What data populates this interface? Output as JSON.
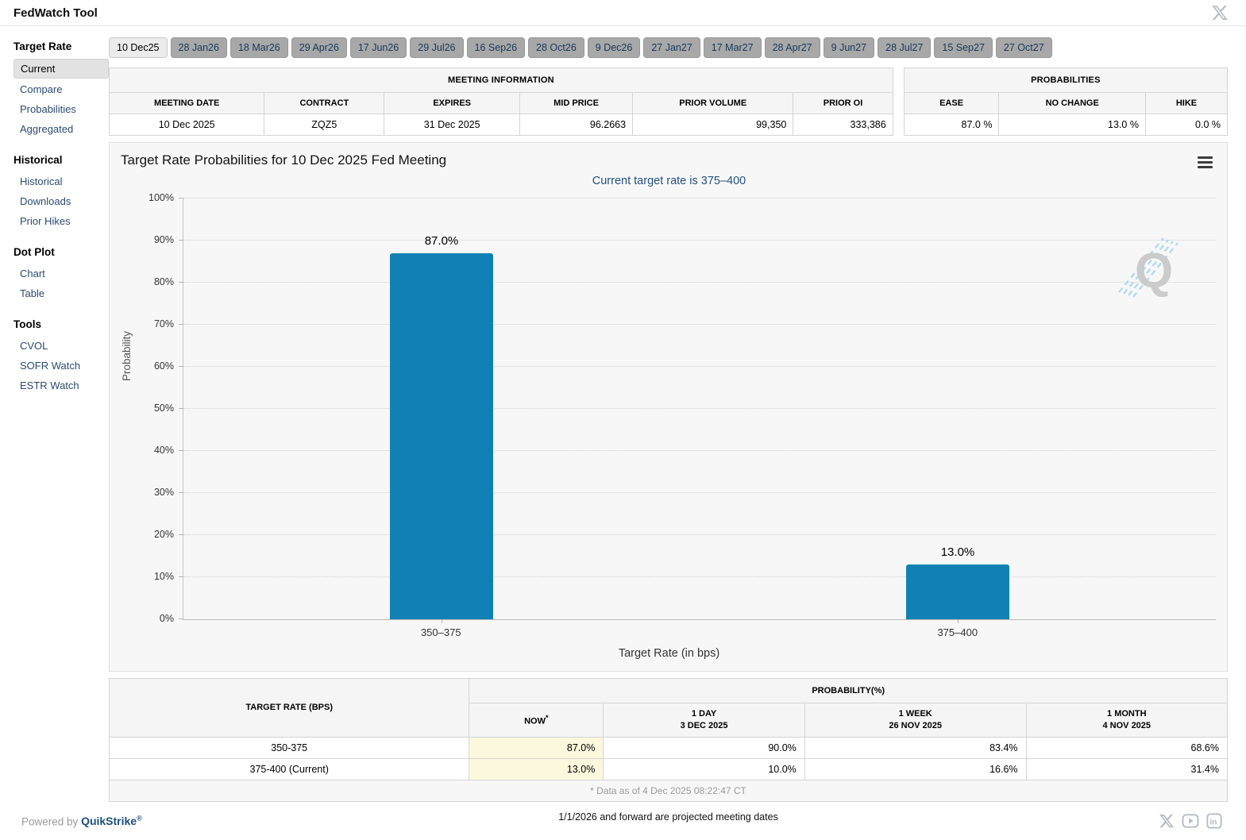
{
  "header": {
    "title": "FedWatch Tool"
  },
  "sidebar": {
    "sections": [
      {
        "title": "Target Rate",
        "items": [
          {
            "label": "Current",
            "selected": true
          },
          {
            "label": "Compare",
            "selected": false
          },
          {
            "label": "Probabilities",
            "selected": false
          },
          {
            "label": "Aggregated",
            "selected": false
          }
        ]
      },
      {
        "title": "Historical",
        "items": [
          {
            "label": "Historical",
            "selected": false
          },
          {
            "label": "Downloads",
            "selected": false
          },
          {
            "label": "Prior Hikes",
            "selected": false
          }
        ]
      },
      {
        "title": "Dot Plot",
        "items": [
          {
            "label": "Chart",
            "selected": false
          },
          {
            "label": "Table",
            "selected": false
          }
        ]
      },
      {
        "title": "Tools",
        "items": [
          {
            "label": "CVOL",
            "selected": false
          },
          {
            "label": "SOFR Watch",
            "selected": false
          },
          {
            "label": "ESTR Watch",
            "selected": false
          }
        ]
      }
    ]
  },
  "tabs": {
    "selected_index": 0,
    "items": [
      "10 Dec25",
      "28 Jan26",
      "18 Mar26",
      "29 Apr26",
      "17 Jun26",
      "29 Jul26",
      "16 Sep26",
      "28 Oct26",
      "9 Dec26",
      "27 Jan27",
      "17 Mar27",
      "28 Apr27",
      "9 Jun27",
      "28 Jul27",
      "15 Sep27",
      "27 Oct27"
    ]
  },
  "meeting_info": {
    "title": "MEETING INFORMATION",
    "columns": [
      "MEETING DATE",
      "CONTRACT",
      "EXPIRES",
      "MID PRICE",
      "PRIOR VOLUME",
      "PRIOR OI"
    ],
    "values": [
      "10 Dec 2025",
      "ZQZ5",
      "31 Dec 2025",
      "96.2663",
      "99,350",
      "333,386"
    ]
  },
  "probabilities": {
    "title": "PROBABILITIES",
    "columns": [
      "EASE",
      "NO CHANGE",
      "HIKE"
    ],
    "values": [
      "87.0 %",
      "13.0 %",
      "0.0 %"
    ]
  },
  "chart_data": {
    "type": "bar",
    "title": "Target Rate Probabilities for 10 Dec 2025 Fed Meeting",
    "subtitle": "Current target rate is 375–400",
    "categories": [
      "350–375",
      "375–400"
    ],
    "values": [
      87.0,
      13.0
    ],
    "value_labels": [
      "87.0%",
      "13.0%"
    ],
    "xlabel": "Target Rate (in bps)",
    "ylabel": "Probability",
    "ylim": [
      0,
      100
    ],
    "ytick_step": 10,
    "ytick_suffix": "%",
    "bar_color": "#0f81b4",
    "grid": "horizontal-dotted",
    "legend": "none"
  },
  "bottom_table": {
    "rate_header": "TARGET RATE (BPS)",
    "group_header": "PROBABILITY(%)",
    "now_label": "NOW",
    "now_sup": "*",
    "subcolumns": [
      {
        "line1": "1 DAY",
        "line2": "3 DEC 2025"
      },
      {
        "line1": "1 WEEK",
        "line2": "26 NOV 2025"
      },
      {
        "line1": "1 MONTH",
        "line2": "4 NOV 2025"
      }
    ],
    "rows": [
      [
        "350-375",
        "87.0%",
        "90.0%",
        "83.4%",
        "68.6%"
      ],
      [
        "375-400 (Current)",
        "13.0%",
        "10.0%",
        "16.6%",
        "31.4%"
      ]
    ],
    "footnote": "* Data as of 4 Dec 2025 08:22:47 CT"
  },
  "notes": {
    "projected": "1/1/2026 and forward are projected meeting dates"
  },
  "footer": {
    "powered_by": "Powered by",
    "brand": "QuikStrike",
    "brand_sup": "®",
    "icons": [
      "x-icon",
      "youtube-icon",
      "linkedin-icon"
    ]
  },
  "colors": {
    "bar": "#0f81b4",
    "subtitle": "#26517e",
    "tab_selected_bg": "#ececec",
    "tab_bg": "#a8a8a8",
    "now_highlight": "#fbf8dd",
    "panel_bg": "#f7f7f7"
  }
}
